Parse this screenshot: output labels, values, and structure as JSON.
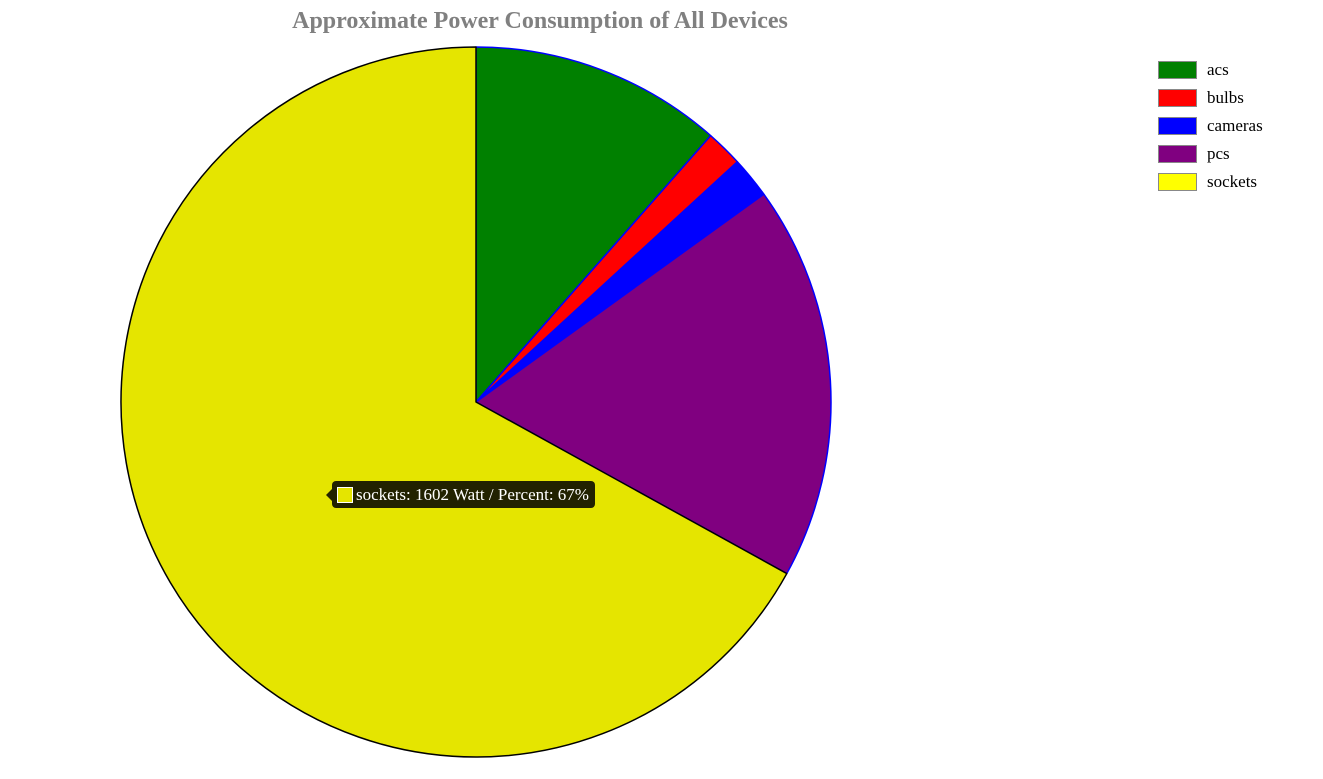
{
  "chart_data": {
    "type": "pie",
    "title": "Approximate Power Consumption of All Devices",
    "unit": "Watt",
    "slices": [
      {
        "label": "acs",
        "value": 275,
        "color": "#008000",
        "legend_color": "#008000"
      },
      {
        "label": "bulbs",
        "value": 40,
        "color": "#ff0000",
        "legend_color": "#ff0000"
      },
      {
        "label": "cameras",
        "value": 45,
        "color": "#0000ff",
        "legend_color": "#0000ff"
      },
      {
        "label": "pcs",
        "value": 430,
        "color": "#800080",
        "legend_color": "#800080"
      },
      {
        "label": "sockets",
        "value": 1602,
        "color": "#e5e500",
        "legend_color": "#ffff00"
      }
    ],
    "legend_position": "top-right",
    "tooltip": {
      "text": "sockets: 1602 Watt / Percent: 67%",
      "color": "#e5e500"
    }
  }
}
